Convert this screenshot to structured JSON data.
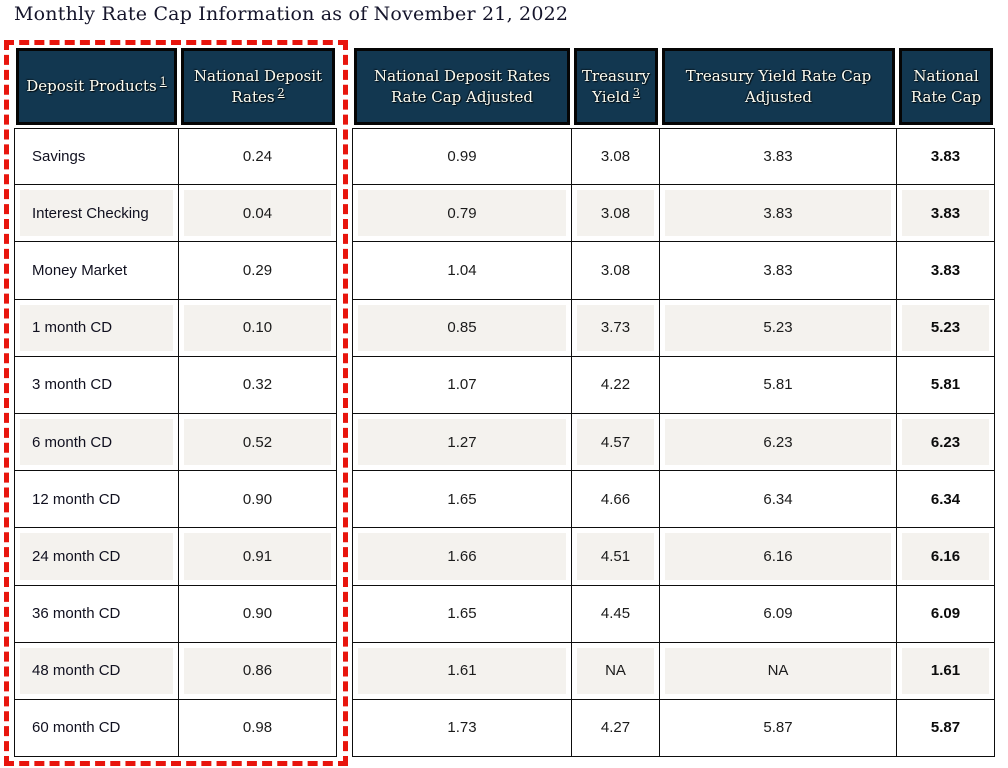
{
  "title": "Monthly Rate Cap Information as of November 21, 2022",
  "table": {
    "columns": [
      {
        "key": "deposit-products",
        "label": "Deposit Products",
        "sup": "1"
      },
      {
        "key": "national-deposit-rates",
        "label": "National Deposit Rates",
        "sup": "2"
      },
      {
        "key": "national-deposit-rates-adjusted",
        "label": "National Deposit Rates Rate Cap Adjusted",
        "sup": ""
      },
      {
        "key": "treasury-yield",
        "label": "Treasury Yield",
        "sup": "3"
      },
      {
        "key": "treasury-yield-adjusted",
        "label": "Treasury Yield Rate Cap Adjusted",
        "sup": ""
      },
      {
        "key": "national-rate-cap",
        "label": "National Rate Cap",
        "sup": ""
      }
    ],
    "rows": [
      [
        "Savings",
        "0.24",
        "0.99",
        "3.08",
        "3.83",
        "3.83"
      ],
      [
        "Interest Checking",
        "0.04",
        "0.79",
        "3.08",
        "3.83",
        "3.83"
      ],
      [
        "Money Market",
        "0.29",
        "1.04",
        "3.08",
        "3.83",
        "3.83"
      ],
      [
        "1 month CD",
        "0.10",
        "0.85",
        "3.73",
        "5.23",
        "5.23"
      ],
      [
        "3 month CD",
        "0.32",
        "1.07",
        "4.22",
        "5.81",
        "5.81"
      ],
      [
        "6 month CD",
        "0.52",
        "1.27",
        "4.57",
        "6.23",
        "6.23"
      ],
      [
        "12 month CD",
        "0.90",
        "1.65",
        "4.66",
        "6.34",
        "6.34"
      ],
      [
        "24 month CD",
        "0.91",
        "1.66",
        "4.51",
        "6.16",
        "6.16"
      ],
      [
        "36 month CD",
        "0.90",
        "1.65",
        "4.45",
        "6.09",
        "6.09"
      ],
      [
        "48 month CD",
        "0.86",
        "1.61",
        "NA",
        "NA",
        "1.61"
      ],
      [
        "60 month CD",
        "0.98",
        "1.73",
        "4.27",
        "5.87",
        "5.87"
      ]
    ]
  },
  "annotation": {
    "shape": "dashed-rectangle",
    "color": "#e8150d",
    "covers": "Deposit Products and National Deposit Rates columns"
  },
  "colors": {
    "header_background": "#123750",
    "header_text": "#fdfdf2",
    "cell_border": "#0d0d0d",
    "stripe_background": "#f4f2ee",
    "title_text": "#15152b",
    "annotation_red": "#e8150d"
  }
}
